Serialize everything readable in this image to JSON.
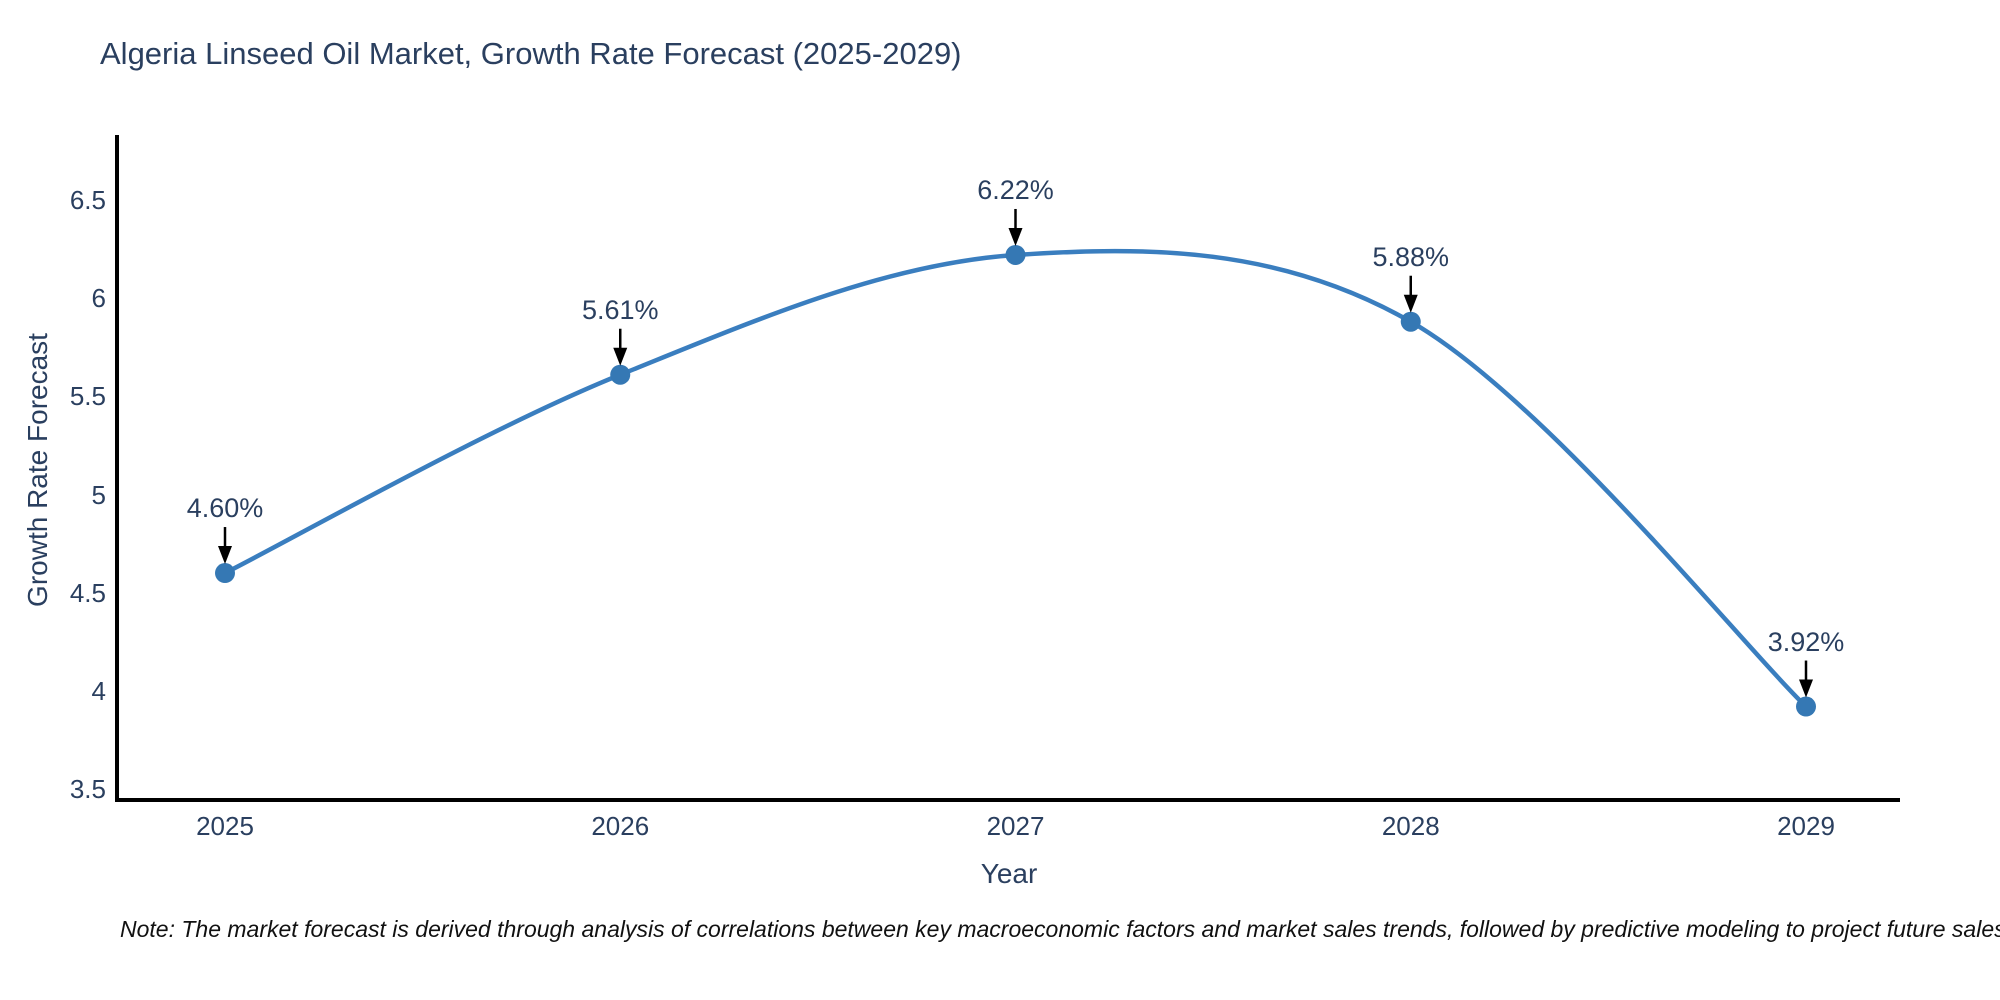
{
  "note": "Note: The market forecast is derived through analysis of correlations between key macroeconomic factors and market sales trends, followed by predictive modeling to project future sales",
  "colors": {
    "line": "#3a7ebf",
    "marker_fill": "#3578b4",
    "axis_line": "#000000",
    "text": "#2a3f5f",
    "annotation_arrow": "#000000"
  },
  "chart_data": {
    "type": "line",
    "title": "Algeria Linseed Oil Market, Growth Rate Forecast (2025-2029)",
    "xlabel": "Year",
    "ylabel": "Growth Rate Forecast",
    "x": [
      2025,
      2026,
      2027,
      2028,
      2029
    ],
    "values": [
      4.6,
      5.61,
      6.22,
      5.88,
      3.92
    ],
    "point_labels": [
      "4.60%",
      "5.61%",
      "6.22%",
      "5.88%",
      "3.92%"
    ],
    "xtick_labels": [
      "2025",
      "2026",
      "2027",
      "2028",
      "2029"
    ],
    "ytick_values": [
      3.5,
      4,
      4.5,
      5,
      5.5,
      6,
      6.5
    ],
    "ytick_labels": [
      "3.5",
      "4",
      "4.5",
      "5",
      "5.5",
      "6",
      "6.5"
    ],
    "ylim": [
      3.5,
      6.5
    ],
    "line_shape": "spline",
    "grid": false,
    "legend_visible": false
  }
}
